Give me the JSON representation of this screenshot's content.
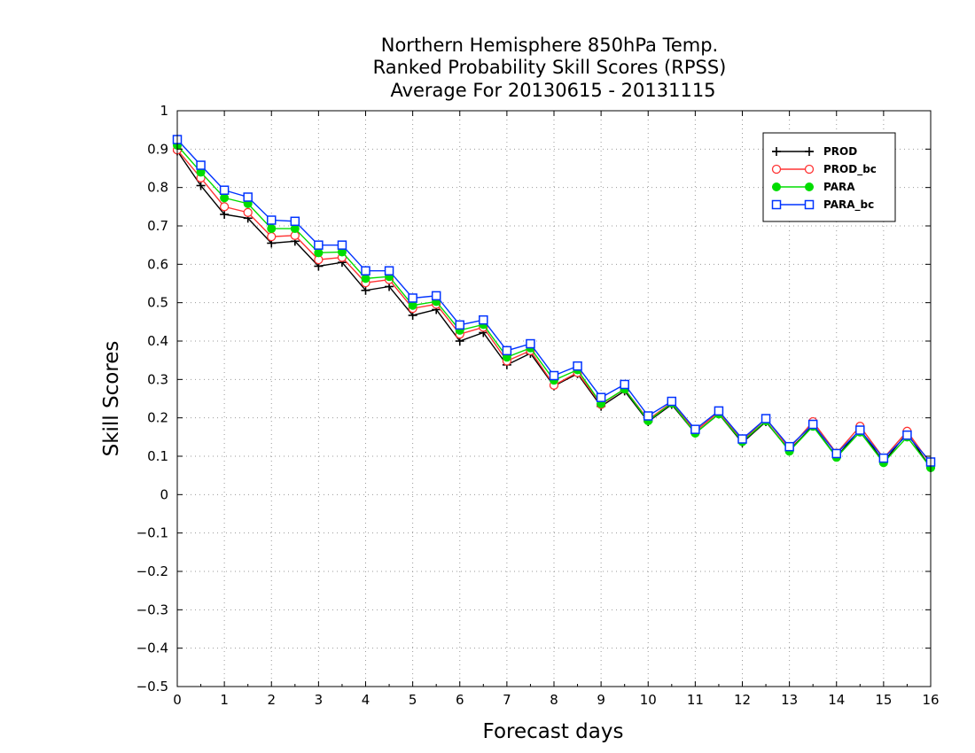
{
  "chart_data": {
    "type": "line",
    "title_lines": [
      "Northern Hemisphere 850hPa Temp.",
      "Ranked Probability Skill Scores (RPSS)",
      "Average For 20130615 - 20131115"
    ],
    "xlabel": "Forecast days",
    "ylabel": "Skill Scores",
    "xlim": [
      0,
      16
    ],
    "ylim": [
      -0.5,
      1
    ],
    "x_ticks": [
      0,
      1,
      2,
      3,
      4,
      5,
      6,
      7,
      8,
      9,
      10,
      11,
      12,
      13,
      14,
      15,
      16
    ],
    "x_tick_labels": [
      "0",
      "1",
      "2",
      "3",
      "4",
      "5",
      "6",
      "7",
      "8",
      "9",
      "10",
      "11",
      "12",
      "13",
      "14",
      "15",
      "16"
    ],
    "y_ticks": [
      1,
      0.9,
      0.8,
      0.7,
      0.6,
      0.5,
      0.4,
      0.3,
      0.2,
      0.1,
      0,
      -0.1,
      -0.2,
      -0.3,
      -0.4,
      -0.5
    ],
    "y_tick_labels": [
      "1",
      "0.9",
      "0.8",
      "0.7",
      "0.6",
      "0.5",
      "0.4",
      "0.3",
      "0.2",
      "0.1",
      "0",
      "−0.1",
      "−0.2",
      "−0.3",
      "−0.4",
      "−0.5"
    ],
    "grid": true,
    "legend_position": "top-right",
    "x": [
      0,
      0.5,
      1,
      1.5,
      2,
      2.5,
      3,
      3.5,
      4,
      4.5,
      5,
      5.5,
      6,
      6.5,
      7,
      7.5,
      8,
      8.5,
      9,
      9.5,
      10,
      10.5,
      11,
      11.5,
      12,
      12.5,
      13,
      13.5,
      14,
      14.5,
      15,
      15.5,
      16
    ],
    "series": [
      {
        "name": "PROD",
        "color": "#000000",
        "marker": "plus",
        "values": [
          0.895,
          0.805,
          0.73,
          0.72,
          0.655,
          0.66,
          0.595,
          0.605,
          0.532,
          0.542,
          0.467,
          0.482,
          0.4,
          0.422,
          0.338,
          0.368,
          0.283,
          0.315,
          0.23,
          0.27,
          0.19,
          0.235,
          0.16,
          0.21,
          0.135,
          0.19,
          0.115,
          0.18,
          0.098,
          0.17,
          0.085,
          0.16,
          0.07
        ]
      },
      {
        "name": "PROD_bc",
        "color": "#ff3333",
        "marker": "circle-open",
        "values": [
          0.898,
          0.825,
          0.75,
          0.735,
          0.672,
          0.675,
          0.612,
          0.618,
          0.552,
          0.56,
          0.485,
          0.496,
          0.418,
          0.436,
          0.348,
          0.375,
          0.285,
          0.318,
          0.235,
          0.275,
          0.195,
          0.24,
          0.165,
          0.215,
          0.14,
          0.198,
          0.12,
          0.19,
          0.108,
          0.178,
          0.095,
          0.165,
          0.08
        ]
      },
      {
        "name": "PARA",
        "color": "#00dd00",
        "marker": "circle-filled",
        "values": [
          0.91,
          0.84,
          0.773,
          0.758,
          0.693,
          0.693,
          0.63,
          0.632,
          0.563,
          0.568,
          0.493,
          0.503,
          0.428,
          0.443,
          0.358,
          0.382,
          0.298,
          0.325,
          0.237,
          0.275,
          0.192,
          0.238,
          0.16,
          0.21,
          0.138,
          0.192,
          0.113,
          0.178,
          0.097,
          0.163,
          0.083,
          0.15,
          0.07
        ]
      },
      {
        "name": "PARA_bc",
        "color": "#0033ff",
        "marker": "square-open",
        "values": [
          0.925,
          0.858,
          0.793,
          0.775,
          0.715,
          0.712,
          0.65,
          0.65,
          0.583,
          0.583,
          0.512,
          0.518,
          0.442,
          0.455,
          0.375,
          0.393,
          0.31,
          0.335,
          0.253,
          0.287,
          0.205,
          0.243,
          0.17,
          0.218,
          0.145,
          0.198,
          0.125,
          0.183,
          0.107,
          0.168,
          0.095,
          0.155,
          0.085
        ]
      }
    ]
  }
}
